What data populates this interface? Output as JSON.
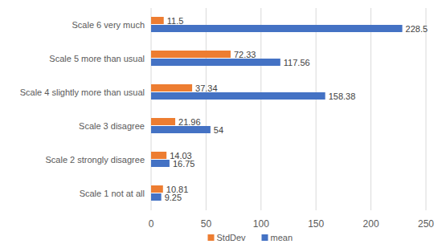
{
  "chart_data": {
    "type": "bar",
    "orientation": "horizontal",
    "categories": [
      "Scale 1 not at all",
      "Scale 2 strongly disagree",
      "Scale 3 disagree",
      "Scale 4 slightly more than usual",
      "Scale 5 more than usual",
      "Scale 6 very much"
    ],
    "series": [
      {
        "name": "StdDev",
        "color": "#ed7d31",
        "values": [
          10.81,
          14.03,
          21.96,
          37.34,
          72.33,
          11.5
        ]
      },
      {
        "name": "mean",
        "color": "#4472c4",
        "values": [
          9.25,
          16.75,
          54,
          158.38,
          117.56,
          228.5
        ]
      }
    ],
    "xlim": [
      0,
      250
    ],
    "xticks": [
      0,
      50,
      100,
      150,
      200,
      250
    ],
    "grid": true,
    "legend": "bottom",
    "data_labels": true
  }
}
